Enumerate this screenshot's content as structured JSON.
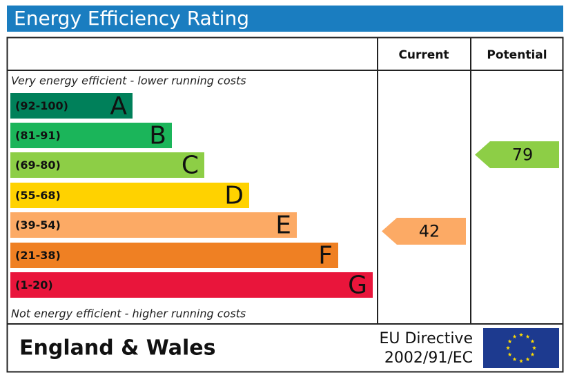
{
  "title": "Energy Efficiency Rating",
  "columns": {
    "current": "Current",
    "potential": "Potential"
  },
  "top_note": "Very energy efficient - lower running costs",
  "bottom_note": "Not energy efficient - higher running costs",
  "bands": [
    {
      "range": "(92-100)",
      "letter": "A",
      "color": "#00805a"
    },
    {
      "range": "(81-91)",
      "letter": "B",
      "color": "#1bb55a"
    },
    {
      "range": "(69-80)",
      "letter": "C",
      "color": "#8dce46"
    },
    {
      "range": "(55-68)",
      "letter": "D",
      "color": "#ffd200"
    },
    {
      "range": "(39-54)",
      "letter": "E",
      "color": "#fcaa65"
    },
    {
      "range": "(21-38)",
      "letter": "F",
      "color": "#ef8023"
    },
    {
      "range": "(1-20)",
      "letter": "G",
      "color": "#e9153b"
    }
  ],
  "current": "42",
  "potential": "79",
  "footer": {
    "region": "England & Wales",
    "directive": [
      "EU Directive",
      "2002/91/EC"
    ]
  }
}
